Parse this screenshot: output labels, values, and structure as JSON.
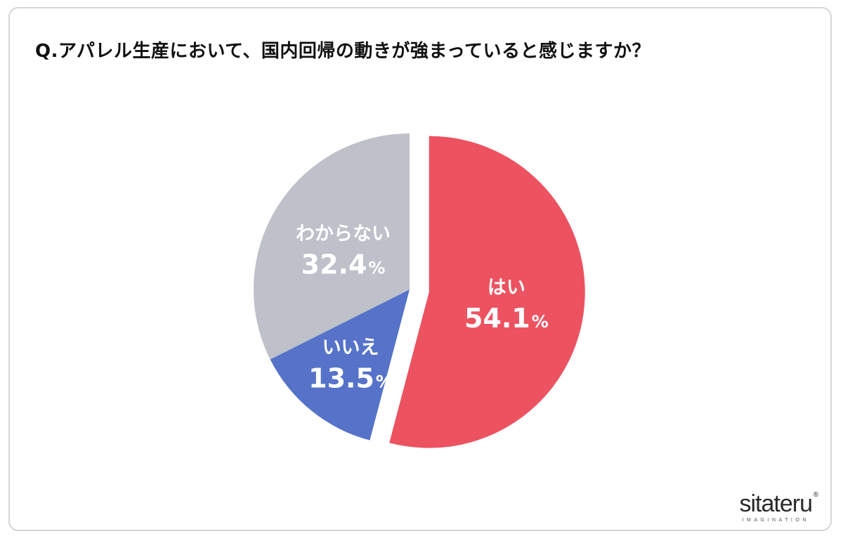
{
  "title": "Q.アパレル生産において、国内回帰の動きが強まっていると感じますか？",
  "chart_data": {
    "type": "pie",
    "title": "Q.アパレル生産において、国内回帰の動きが強まっていると感じますか？",
    "unit": "%",
    "slices": [
      {
        "label": "はい",
        "value": 54.1,
        "display": "54.1",
        "color": "#ec5260",
        "exploded": true
      },
      {
        "label": "いいえ",
        "value": 13.5,
        "display": "13.5",
        "color": "#5673c9",
        "exploded": false
      },
      {
        "label": "わからない",
        "value": 32.4,
        "display": "32.4",
        "color": "#bec0ca",
        "exploded": false
      }
    ]
  },
  "logo": {
    "name": "sitateru",
    "mark": "®",
    "tagline": "IMAGINATION"
  }
}
